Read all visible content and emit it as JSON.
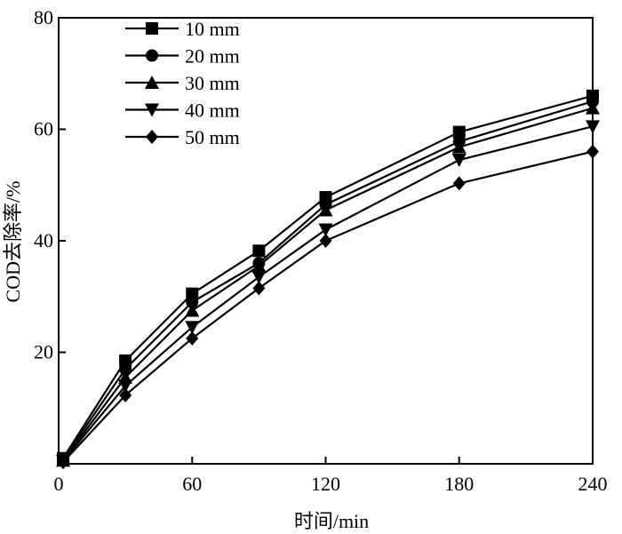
{
  "chart_data": {
    "type": "line",
    "xlabel": "时间/min",
    "ylabel": "COD去除率/%",
    "xlim": [
      0,
      240
    ],
    "ylim": [
      0,
      80
    ],
    "x_ticks": [
      0,
      60,
      120,
      180,
      240
    ],
    "y_ticks": [
      20,
      40,
      60,
      80
    ],
    "grid": false,
    "legend_position": "top-left",
    "colors": {
      "line": "#000000",
      "marker": "#000000"
    },
    "series": [
      {
        "name": "10 mm",
        "marker": "square",
        "x": [
          2,
          30,
          60,
          90,
          120,
          180,
          240
        ],
        "y": [
          1,
          18.5,
          30.5,
          38.2,
          47.8,
          59.5,
          66
        ]
      },
      {
        "name": "20 mm",
        "marker": "circle",
        "x": [
          2,
          30,
          60,
          90,
          120,
          180,
          240
        ],
        "y": [
          0.8,
          17,
          29,
          36,
          46.5,
          57.8,
          65
        ]
      },
      {
        "name": "30 mm",
        "marker": "triangle-up",
        "x": [
          2,
          30,
          60,
          90,
          120,
          180,
          240
        ],
        "y": [
          0.6,
          15.5,
          27.5,
          35.5,
          45.5,
          56.8,
          63.8
        ]
      },
      {
        "name": "40 mm",
        "marker": "triangle-down",
        "x": [
          2,
          30,
          60,
          90,
          120,
          180,
          240
        ],
        "y": [
          0.5,
          14,
          24.5,
          33.5,
          42,
          54.5,
          60.5
        ]
      },
      {
        "name": "50 mm",
        "marker": "diamond",
        "x": [
          2,
          30,
          60,
          90,
          120,
          180,
          240
        ],
        "y": [
          0.3,
          12.3,
          22.5,
          31.5,
          40,
          50.3,
          56
        ]
      }
    ]
  }
}
